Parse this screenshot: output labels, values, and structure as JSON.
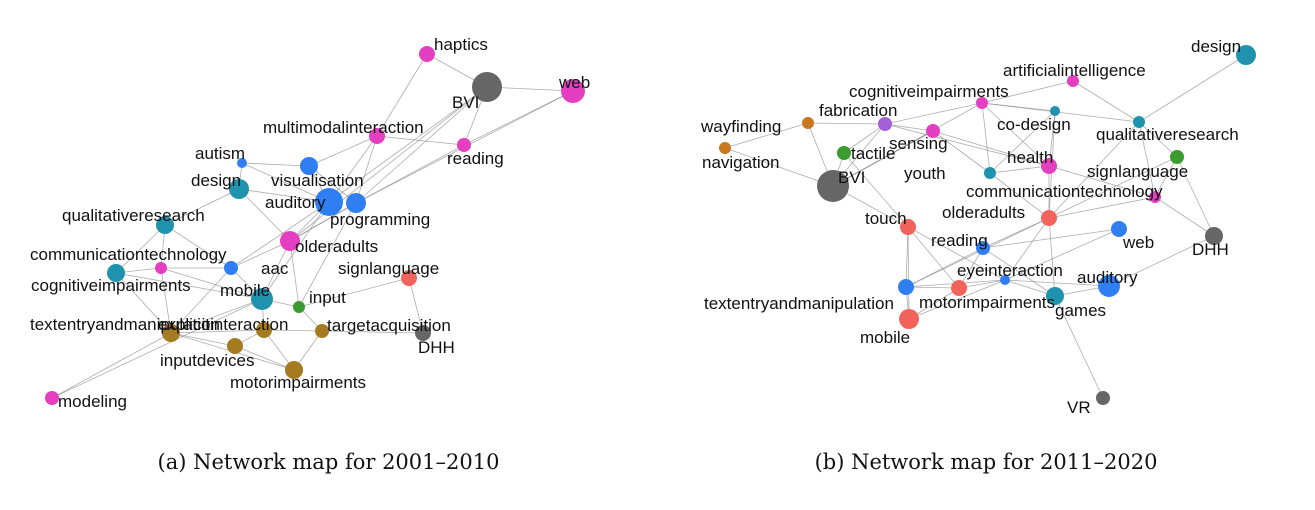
{
  "colors": {
    "magenta": "#e53fc1",
    "blue": "#2f7ff2",
    "teal": "#1f93ad",
    "gold": "#a57b20",
    "gray": "#666666",
    "green": "#3a9b2e",
    "red": "#f2645b",
    "orange": "#c77821",
    "purple": "#a55fd6",
    "edge": "#8a8a8a"
  },
  "networks": [
    {
      "caption": "(a) Network map for 2001–2010",
      "nodes": [
        {
          "label": "haptics",
          "color": "magenta"
        },
        {
          "label": "web",
          "color": "magenta"
        },
        {
          "label": "BVI",
          "color": "gray"
        },
        {
          "label": "multimodalinteraction",
          "color": "magenta"
        },
        {
          "label": "reading",
          "color": "magenta"
        },
        {
          "label": "autism",
          "color": "blue"
        },
        {
          "label": "visualisation",
          "color": "blue"
        },
        {
          "label": "design",
          "color": "teal"
        },
        {
          "label": "auditory",
          "color": "blue"
        },
        {
          "label": "programming",
          "color": "blue"
        },
        {
          "label": "qualitativeresearch",
          "color": "teal"
        },
        {
          "label": "olderadults",
          "color": "magenta"
        },
        {
          "label": "communicationtechnology",
          "color": "magenta"
        },
        {
          "label": "aac",
          "color": "blue"
        },
        {
          "label": "cognitiveimpairments",
          "color": "teal"
        },
        {
          "label": "signlanguage",
          "color": "red"
        },
        {
          "label": "mobile",
          "color": "teal"
        },
        {
          "label": "input",
          "color": "green"
        },
        {
          "label": "explicitinteraction",
          "color": "gold"
        },
        {
          "label": "textentryandmanipulation",
          "color": "gold"
        },
        {
          "label": "targetacquisition",
          "color": "gold"
        },
        {
          "label": "DHH",
          "color": "gray"
        },
        {
          "label": "inputdevices",
          "color": "gold"
        },
        {
          "label": "motorimpairments",
          "color": "gold"
        },
        {
          "label": "modeling",
          "color": "magenta"
        }
      ]
    },
    {
      "caption": "(b) Network map for 2011–2020",
      "nodes": [
        {
          "label": "design",
          "color": "teal"
        },
        {
          "label": "artificialintelligence",
          "color": "magenta"
        },
        {
          "label": "cognitiveimpairments",
          "color": "magenta"
        },
        {
          "label": "fabrication",
          "color": "purple"
        },
        {
          "label": "co-design",
          "color": "teal"
        },
        {
          "label": "qualitativeresearch",
          "color": "teal"
        },
        {
          "label": "wayfinding",
          "color": "orange"
        },
        {
          "label": "sensing",
          "color": "magenta"
        },
        {
          "label": "tactile",
          "color": "green"
        },
        {
          "label": "health",
          "color": "magenta"
        },
        {
          "label": "navigation",
          "color": "orange"
        },
        {
          "label": "signlanguage",
          "color": "green"
        },
        {
          "label": "BVI",
          "color": "gray"
        },
        {
          "label": "youth",
          "color": "teal"
        },
        {
          "label": "communicationtechnology",
          "color": "magenta"
        },
        {
          "label": "touch",
          "color": "red"
        },
        {
          "label": "olderadults",
          "color": "red"
        },
        {
          "label": "web",
          "color": "blue"
        },
        {
          "label": "reading",
          "color": "blue"
        },
        {
          "label": "DHH",
          "color": "gray"
        },
        {
          "label": "eyeinteraction",
          "color": "blue"
        },
        {
          "label": "auditory",
          "color": "blue"
        },
        {
          "label": "textentryandmanipulation",
          "color": "blue"
        },
        {
          "label": "motorimpairments",
          "color": "red"
        },
        {
          "label": "games",
          "color": "teal"
        },
        {
          "label": "mobile",
          "color": "red"
        },
        {
          "label": "VR",
          "color": "gray"
        }
      ]
    }
  ]
}
